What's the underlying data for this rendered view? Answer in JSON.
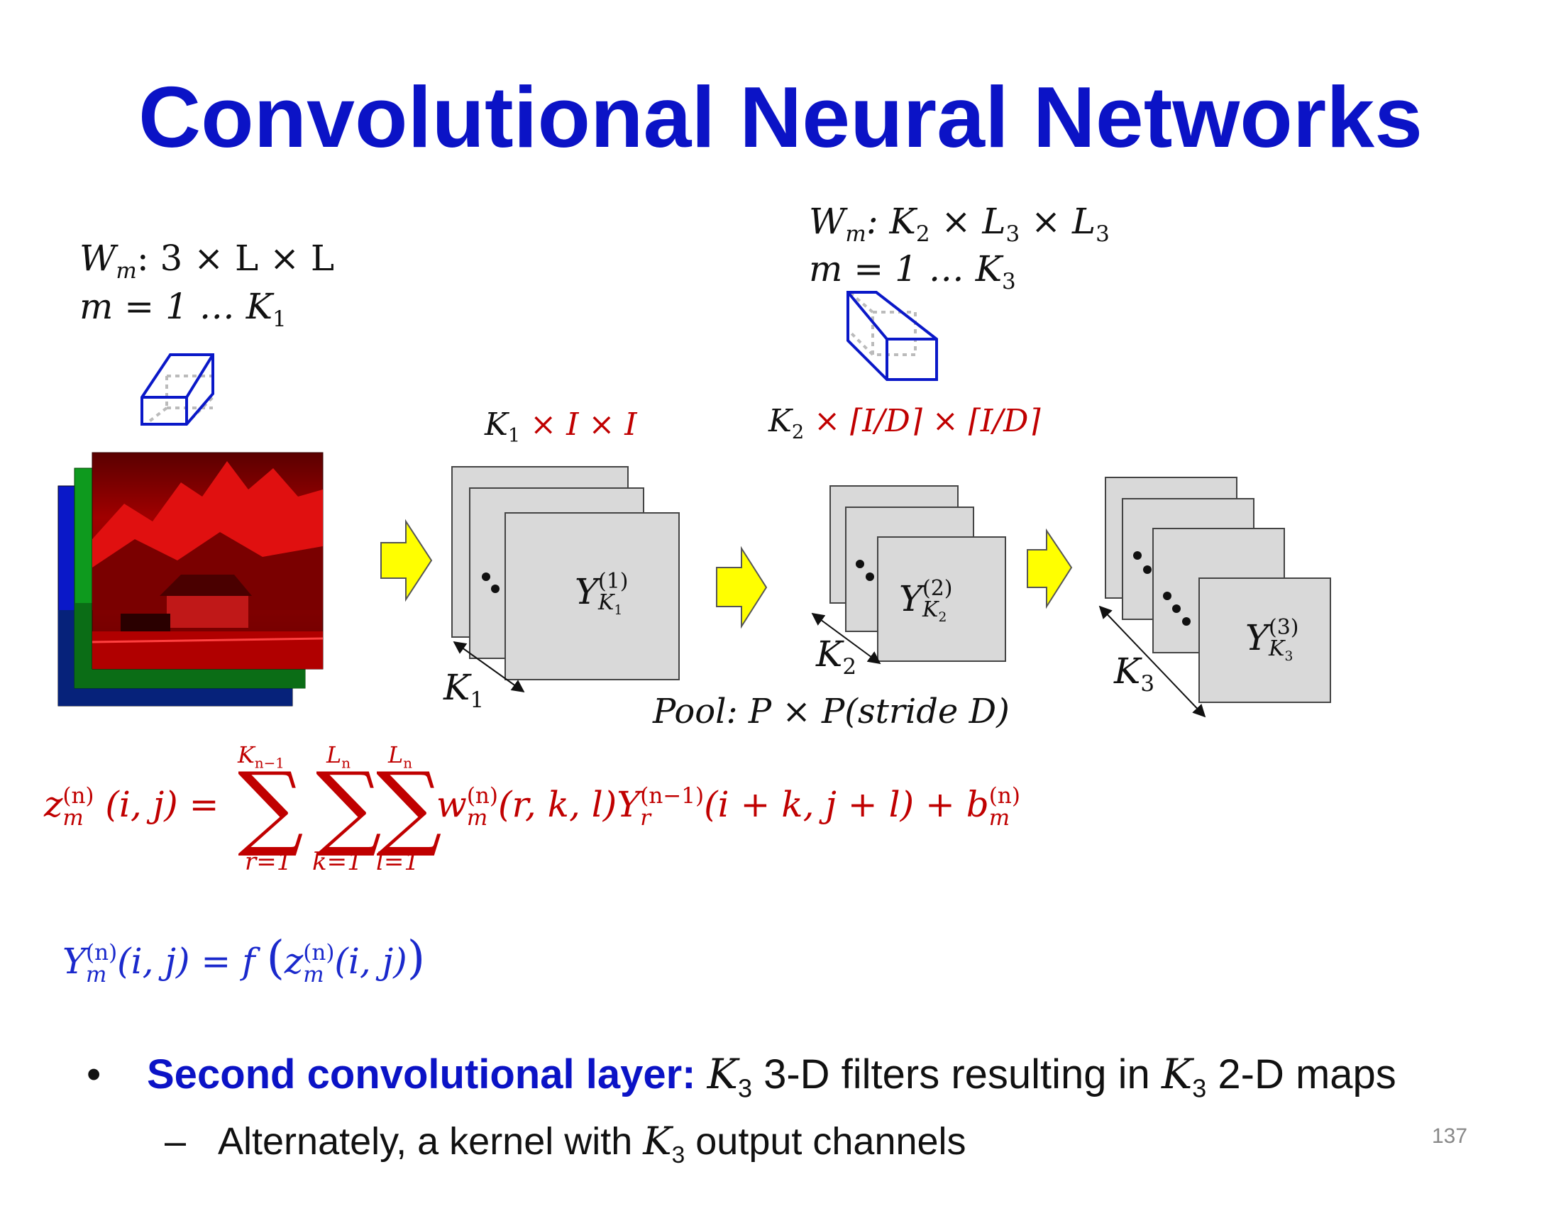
{
  "slide": {
    "title": "Convolutional Neural Networks",
    "page_number": "137"
  },
  "filter1": {
    "shape": "W_m: 3 × L × L",
    "shape_W": "W",
    "shape_sub": "m",
    "shape_rest": ": 3 × L × L",
    "range_pre": "m = 1 … K",
    "range_sub": "1"
  },
  "filter2": {
    "shape_W": "W",
    "shape_sub": "m",
    "shape_a": ": K",
    "shape_a_sub": "2",
    "shape_b": " × L",
    "shape_b_sub": "3",
    "shape_c": " × L",
    "shape_c_sub": "3",
    "range_pre": "m = 1 … K",
    "range_sub": "3"
  },
  "layer1": {
    "dims_K": "K",
    "dims_K_sub": "1",
    "dims_rest": " × I × I",
    "map_label": "Y",
    "map_sup": "(1)",
    "map_sub": "K",
    "map_subsub": "1",
    "depth_label": "K",
    "depth_sub": "1"
  },
  "layer2": {
    "dims_K": "K",
    "dims_K_sub": "2",
    "dims_rest": " × ⌈I/D⌉ × ⌈I/D⌉",
    "map_label": "Y",
    "map_sup": "(2)",
    "map_sub": "K",
    "map_subsub": "2",
    "depth_label": "K",
    "depth_sub": "2",
    "pool": "Pool: P × P(stride D)"
  },
  "layer3": {
    "map_label": "Y",
    "map_sup": "(3)",
    "map_sub": "K",
    "map_subsub": "3",
    "depth_label": "K",
    "depth_sub": "3"
  },
  "equations": {
    "z_lhs": "z",
    "z_lhs_sup": "(n)",
    "z_lhs_sub": "m",
    "z_lhs_args": "(i, j) =",
    "sum1_top": "K",
    "sum1_top_sub": "n−1",
    "sum1_bottom": "r=1",
    "sum2_top": "L",
    "sum2_top_sub": "n",
    "sum2_bottom": "k=1",
    "sum3_top": "L",
    "sum3_top_sub": "n",
    "sum3_bottom": "l=1",
    "sigma": "∑",
    "term_w": "w",
    "term_w_sup": "(n)",
    "term_w_sub": "m",
    "term_w_args": "(r, k, l)Y",
    "term_y_sup": "(n−1)",
    "term_y_sub": "r",
    "term_rest": "(i + k, j + l) + b",
    "term_b_sup": "(n)",
    "term_b_sub": "m",
    "y_lhs": "Y",
    "y_lhs_sup": "(n)",
    "y_lhs_sub": "m",
    "y_mid": "(i, j) = f",
    "y_z": "z",
    "y_z_sup": "(n)",
    "y_z_sub": "m",
    "y_z_args": "(i, j)"
  },
  "bullets": {
    "b1_marker": "•",
    "b1_bold": "Second convolutional layer:",
    "b1_k": "K",
    "b1_k_sub": "3",
    "b1_mid": " 3-D filters resulting in ",
    "b1_k2": "K",
    "b1_k2_sub": "3",
    "b1_end": " 2-D maps",
    "b2_marker": "–",
    "b2_pre": "Alternately,  a kernel with ",
    "b2_k": "K",
    "b2_k_sub": "3",
    "b2_end": " output channels"
  },
  "colors": {
    "title_blue": "#0b13c6",
    "equation_red": "#c00000",
    "equation_blue": "#1a29cc",
    "arrow_yellow": "#ffff00",
    "map_gray": "#d9d9d9"
  }
}
